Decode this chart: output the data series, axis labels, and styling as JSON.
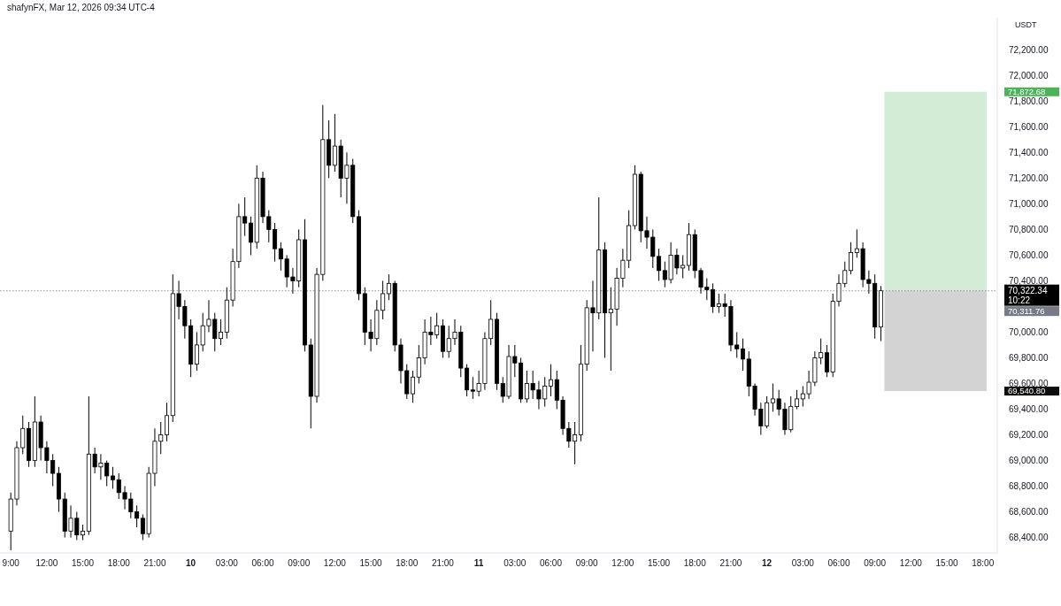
{
  "chart_data": {
    "type": "candlestick",
    "title": "shafynFX, Mar 12, 2026 09:34 UTC-4",
    "ylabel": "USDT",
    "color": "#000000",
    "x": [
      "2026-03-09T09:00",
      "2026-03-09T09:30",
      "2026-03-09T10:00",
      "2026-03-09T10:30",
      "2026-03-09T11:00",
      "2026-03-09T11:30",
      "2026-03-09T12:00",
      "2026-03-09T12:30",
      "2026-03-09T13:00",
      "2026-03-09T13:30",
      "2026-03-09T14:00",
      "2026-03-09T14:30",
      "2026-03-09T15:00",
      "2026-03-09T15:30",
      "2026-03-09T16:00",
      "2026-03-09T16:30",
      "2026-03-09T17:00",
      "2026-03-09T17:30",
      "2026-03-09T18:00",
      "2026-03-09T18:30",
      "2026-03-09T19:00",
      "2026-03-09T19:30",
      "2026-03-09T20:00",
      "2026-03-09T20:30",
      "2026-03-09T21:00",
      "2026-03-09T21:30",
      "2026-03-09T22:00",
      "2026-03-09T22:30",
      "2026-03-09T23:00",
      "2026-03-09T23:30",
      "2026-03-10T00:00",
      "2026-03-10T00:30",
      "2026-03-10T01:00",
      "2026-03-10T01:30",
      "2026-03-10T02:00",
      "2026-03-10T02:30",
      "2026-03-10T03:00",
      "2026-03-10T03:30",
      "2026-03-10T04:00",
      "2026-03-10T04:30",
      "2026-03-10T05:00",
      "2026-03-10T05:30",
      "2026-03-10T06:00",
      "2026-03-10T06:30",
      "2026-03-10T07:00",
      "2026-03-10T07:30",
      "2026-03-10T08:00",
      "2026-03-10T08:30",
      "2026-03-10T09:00",
      "2026-03-10T09:30",
      "2026-03-10T10:00",
      "2026-03-10T10:30",
      "2026-03-10T11:00",
      "2026-03-10T11:30",
      "2026-03-10T12:00",
      "2026-03-10T12:30",
      "2026-03-10T13:00",
      "2026-03-10T13:30",
      "2026-03-10T14:00",
      "2026-03-10T14:30",
      "2026-03-10T15:00",
      "2026-03-10T15:30",
      "2026-03-10T16:00",
      "2026-03-10T16:30",
      "2026-03-10T17:00",
      "2026-03-10T17:30",
      "2026-03-10T18:00",
      "2026-03-10T18:30",
      "2026-03-10T19:00",
      "2026-03-10T19:30",
      "2026-03-10T20:00",
      "2026-03-10T20:30",
      "2026-03-10T21:00",
      "2026-03-10T21:30",
      "2026-03-10T22:00",
      "2026-03-10T22:30",
      "2026-03-10T23:00",
      "2026-03-10T23:30",
      "2026-03-11T00:00",
      "2026-03-11T00:30",
      "2026-03-11T01:00",
      "2026-03-11T01:30",
      "2026-03-11T02:00",
      "2026-03-11T02:30",
      "2026-03-11T03:00",
      "2026-03-11T03:30",
      "2026-03-11T04:00",
      "2026-03-11T04:30",
      "2026-03-11T05:00",
      "2026-03-11T05:30",
      "2026-03-11T06:00",
      "2026-03-11T06:30",
      "2026-03-11T07:00",
      "2026-03-11T07:30",
      "2026-03-11T08:00",
      "2026-03-11T08:30",
      "2026-03-11T09:00",
      "2026-03-11T09:30",
      "2026-03-11T10:00",
      "2026-03-11T10:30",
      "2026-03-11T11:00",
      "2026-03-11T11:30",
      "2026-03-11T12:00",
      "2026-03-11T12:30",
      "2026-03-11T13:00",
      "2026-03-11T13:30",
      "2026-03-11T14:00",
      "2026-03-11T14:30",
      "2026-03-11T15:00",
      "2026-03-11T15:30",
      "2026-03-11T16:00",
      "2026-03-11T16:30",
      "2026-03-11T17:00",
      "2026-03-11T17:30",
      "2026-03-11T18:00",
      "2026-03-11T18:30",
      "2026-03-11T19:00",
      "2026-03-11T19:30",
      "2026-03-11T20:00",
      "2026-03-11T20:30",
      "2026-03-11T21:00",
      "2026-03-11T21:30",
      "2026-03-11T22:00",
      "2026-03-11T22:30",
      "2026-03-11T23:00",
      "2026-03-11T23:30",
      "2026-03-12T00:00",
      "2026-03-12T00:30",
      "2026-03-12T01:00",
      "2026-03-12T01:30",
      "2026-03-12T02:00",
      "2026-03-12T02:30",
      "2026-03-12T03:00",
      "2026-03-12T03:30",
      "2026-03-12T04:00",
      "2026-03-12T04:30",
      "2026-03-12T05:00",
      "2026-03-12T05:30",
      "2026-03-12T06:00",
      "2026-03-12T06:30",
      "2026-03-12T07:00",
      "2026-03-12T07:30",
      "2026-03-12T08:00",
      "2026-03-12T08:30",
      "2026-03-12T09:00",
      "2026-03-12T09:30"
    ],
    "ohlc": [
      [
        68450,
        68750,
        68300,
        68700
      ],
      [
        68700,
        69150,
        68650,
        69100
      ],
      [
        69100,
        69350,
        69050,
        69250
      ],
      [
        69250,
        69300,
        68950,
        69000
      ],
      [
        69000,
        69500,
        68950,
        69300
      ],
      [
        69300,
        69350,
        69000,
        69100
      ],
      [
        69100,
        69150,
        68900,
        69000
      ],
      [
        69000,
        69050,
        68800,
        68900
      ],
      [
        68900,
        68950,
        68600,
        68700
      ],
      [
        68700,
        68750,
        68400,
        68450
      ],
      [
        68450,
        68650,
        68400,
        68550
      ],
      [
        68550,
        68600,
        68380,
        68420
      ],
      [
        68420,
        68500,
        68380,
        68450
      ],
      [
        68450,
        69500,
        68420,
        69050
      ],
      [
        69050,
        69100,
        68900,
        68950
      ],
      [
        68950,
        69050,
        68850,
        68980
      ],
      [
        68980,
        69000,
        68800,
        68880
      ],
      [
        68880,
        68950,
        68780,
        68850
      ],
      [
        68850,
        68900,
        68700,
        68750
      ],
      [
        68750,
        68800,
        68620,
        68700
      ],
      [
        68700,
        68750,
        68550,
        68600
      ],
      [
        68600,
        68650,
        68480,
        68550
      ],
      [
        68550,
        68580,
        68380,
        68430
      ],
      [
        68430,
        68950,
        68400,
        68900
      ],
      [
        68900,
        69250,
        68800,
        69150
      ],
      [
        69150,
        69300,
        69050,
        69200
      ],
      [
        69200,
        69450,
        69150,
        69350
      ],
      [
        69350,
        70450,
        69300,
        70300
      ],
      [
        70300,
        70400,
        70100,
        70200
      ],
      [
        70200,
        70250,
        69950,
        70050
      ],
      [
        70050,
        70100,
        69650,
        69750
      ],
      [
        69750,
        70000,
        69700,
        69900
      ],
      [
        69900,
        70150,
        69850,
        70050
      ],
      [
        70050,
        70250,
        70000,
        70100
      ],
      [
        70100,
        70150,
        69850,
        69950
      ],
      [
        69950,
        70100,
        69900,
        70000
      ],
      [
        70000,
        70350,
        69950,
        70250
      ],
      [
        70250,
        70650,
        70200,
        70550
      ],
      [
        70550,
        71000,
        70500,
        70900
      ],
      [
        70900,
        71050,
        70750,
        70850
      ],
      [
        70850,
        70900,
        70600,
        70700
      ],
      [
        70700,
        71300,
        70650,
        71200
      ],
      [
        71200,
        71250,
        70850,
        70900
      ],
      [
        70900,
        70950,
        70700,
        70800
      ],
      [
        70800,
        70850,
        70550,
        70650
      ],
      [
        70650,
        70700,
        70480,
        70570
      ],
      [
        70570,
        70600,
        70350,
        70430
      ],
      [
        70430,
        70500,
        70300,
        70400
      ],
      [
        70400,
        70800,
        70350,
        70720
      ],
      [
        70720,
        70880,
        69850,
        69900
      ],
      [
        69900,
        69950,
        69250,
        69500
      ],
      [
        69500,
        70500,
        69450,
        70450
      ],
      [
        70450,
        71770,
        70400,
        71500
      ],
      [
        71500,
        71650,
        71200,
        71300
      ],
      [
        71300,
        71700,
        71250,
        71450
      ],
      [
        71450,
        71500,
        71050,
        71200
      ],
      [
        71200,
        71400,
        71000,
        71300
      ],
      [
        71300,
        71350,
        70850,
        70900
      ],
      [
        70900,
        70950,
        70250,
        70300
      ],
      [
        70300,
        70350,
        69900,
        70000
      ],
      [
        70000,
        70100,
        69850,
        69950
      ],
      [
        69950,
        70250,
        69900,
        70170
      ],
      [
        70170,
        70400,
        70100,
        70300
      ],
      [
        70300,
        70450,
        70250,
        70380
      ],
      [
        70380,
        70400,
        69850,
        69900
      ],
      [
        69900,
        69950,
        69600,
        69700
      ],
      [
        69700,
        69750,
        69480,
        69520
      ],
      [
        69520,
        69700,
        69450,
        69650
      ],
      [
        69650,
        69900,
        69600,
        69800
      ],
      [
        69800,
        70100,
        69750,
        70000
      ],
      [
        70000,
        70120,
        69900,
        69980
      ],
      [
        69980,
        70150,
        69950,
        70050
      ],
      [
        70050,
        70100,
        69800,
        69850
      ],
      [
        69850,
        70050,
        69800,
        69950
      ],
      [
        69950,
        70100,
        69900,
        70000
      ],
      [
        70000,
        70050,
        69650,
        69720
      ],
      [
        69720,
        69750,
        69500,
        69550
      ],
      [
        69550,
        69650,
        69480,
        69540
      ],
      [
        69540,
        69700,
        69500,
        69600
      ],
      [
        69600,
        70000,
        69550,
        69950
      ],
      [
        69950,
        70250,
        69900,
        70100
      ],
      [
        70100,
        70150,
        69550,
        69600
      ],
      [
        69600,
        69650,
        69450,
        69500
      ],
      [
        69500,
        69900,
        69480,
        69810
      ],
      [
        69810,
        69900,
        69650,
        69760
      ],
      [
        69760,
        69800,
        69450,
        69480
      ],
      [
        69480,
        69700,
        69450,
        69600
      ],
      [
        69600,
        69700,
        69480,
        69550
      ],
      [
        69550,
        69620,
        69400,
        69480
      ],
      [
        69480,
        69650,
        69420,
        69580
      ],
      [
        69580,
        69750,
        69500,
        69630
      ],
      [
        69630,
        69700,
        69400,
        69470
      ],
      [
        69470,
        69500,
        69200,
        69250
      ],
      [
        69250,
        69300,
        69100,
        69150
      ],
      [
        69150,
        69300,
        68970,
        69200
      ],
      [
        69200,
        69900,
        69150,
        69750
      ],
      [
        69750,
        70250,
        69700,
        70190
      ],
      [
        70190,
        70400,
        69850,
        70150
      ],
      [
        70150,
        71050,
        70100,
        70640
      ],
      [
        70640,
        70700,
        69800,
        70150
      ],
      [
        70150,
        70350,
        69700,
        70180
      ],
      [
        70180,
        70500,
        70050,
        70420
      ],
      [
        70420,
        70650,
        70350,
        70560
      ],
      [
        70560,
        70950,
        70500,
        70830
      ],
      [
        70830,
        71300,
        70800,
        71230
      ],
      [
        71230,
        71250,
        70700,
        70790
      ],
      [
        70790,
        70900,
        70650,
        70740
      ],
      [
        70740,
        70800,
        70500,
        70590
      ],
      [
        70590,
        70650,
        70400,
        70480
      ],
      [
        70480,
        70550,
        70350,
        70410
      ],
      [
        70410,
        70700,
        70380,
        70600
      ],
      [
        70600,
        70650,
        70450,
        70500
      ],
      [
        70500,
        70600,
        70420,
        70520
      ],
      [
        70520,
        70850,
        70480,
        70760
      ],
      [
        70760,
        70800,
        70420,
        70480
      ],
      [
        70480,
        70500,
        70300,
        70350
      ],
      [
        70350,
        70420,
        70250,
        70330
      ],
      [
        70330,
        70380,
        70150,
        70200
      ],
      [
        70200,
        70300,
        70150,
        70220
      ],
      [
        70220,
        70300,
        70120,
        70200
      ],
      [
        70200,
        70250,
        69850,
        69900
      ],
      [
        69900,
        70000,
        69800,
        69870
      ],
      [
        69870,
        69950,
        69700,
        69790
      ],
      [
        69790,
        69850,
        69500,
        69580
      ],
      [
        69580,
        69600,
        69350,
        69400
      ],
      [
        69400,
        69450,
        69200,
        69270
      ],
      [
        69270,
        69500,
        69250,
        69450
      ],
      [
        69450,
        69600,
        69380,
        69480
      ],
      [
        69480,
        69550,
        69350,
        69400
      ],
      [
        69400,
        69450,
        69200,
        69240
      ],
      [
        69240,
        69500,
        69220,
        69420
      ],
      [
        69420,
        69550,
        69400,
        69480
      ],
      [
        69480,
        69580,
        69420,
        69520
      ],
      [
        69520,
        69700,
        69480,
        69610
      ],
      [
        69610,
        69850,
        69580,
        69800
      ],
      [
        69800,
        69950,
        69750,
        69840
      ],
      [
        69840,
        69900,
        69650,
        69690
      ],
      [
        69690,
        70300,
        69650,
        70240
      ],
      [
        70240,
        70450,
        70200,
        70380
      ],
      [
        70380,
        70550,
        70350,
        70480
      ],
      [
        70480,
        70700,
        70450,
        70620
      ],
      [
        70620,
        70800,
        70580,
        70650
      ],
      [
        70650,
        70700,
        70350,
        70410
      ],
      [
        70410,
        70480,
        70300,
        70380
      ],
      [
        70380,
        70450,
        69950,
        70040
      ],
      [
        70040,
        70360,
        69930,
        70322.34
      ]
    ],
    "xlim": [
      "2026-03-09T08:06",
      "2026-03-12T19:12"
    ],
    "xticks": [
      {
        "value": "2026-03-09T09:00",
        "label": "9:00"
      },
      {
        "value": "2026-03-09T12:00",
        "label": "12:00"
      },
      {
        "value": "2026-03-09T15:00",
        "label": "15:00"
      },
      {
        "value": "2026-03-09T18:00",
        "label": "18:00"
      },
      {
        "value": "2026-03-09T21:00",
        "label": "21:00"
      },
      {
        "value": "2026-03-10T00:00",
        "label": "10"
      },
      {
        "value": "2026-03-10T03:00",
        "label": "03:00"
      },
      {
        "value": "2026-03-10T06:00",
        "label": "06:00"
      },
      {
        "value": "2026-03-10T09:00",
        "label": "09:00"
      },
      {
        "value": "2026-03-10T12:00",
        "label": "12:00"
      },
      {
        "value": "2026-03-10T15:00",
        "label": "15:00"
      },
      {
        "value": "2026-03-10T18:00",
        "label": "18:00"
      },
      {
        "value": "2026-03-10T21:00",
        "label": "21:00"
      },
      {
        "value": "2026-03-11T00:00",
        "label": "11"
      },
      {
        "value": "2026-03-11T03:00",
        "label": "03:00"
      },
      {
        "value": "2026-03-11T06:00",
        "label": "06:00"
      },
      {
        "value": "2026-03-11T09:00",
        "label": "09:00"
      },
      {
        "value": "2026-03-11T12:00",
        "label": "12:00"
      },
      {
        "value": "2026-03-11T15:00",
        "label": "15:00"
      },
      {
        "value": "2026-03-11T18:00",
        "label": "18:00"
      },
      {
        "value": "2026-03-11T21:00",
        "label": "21:00"
      },
      {
        "value": "2026-03-12T00:00",
        "label": "12"
      },
      {
        "value": "2026-03-12T03:00",
        "label": "03:00"
      },
      {
        "value": "2026-03-12T06:00",
        "label": "06:00"
      },
      {
        "value": "2026-03-12T09:00",
        "label": "09:00"
      },
      {
        "value": "2026-03-12T12:00",
        "label": "12:00"
      },
      {
        "value": "2026-03-12T15:00",
        "label": "15:00"
      },
      {
        "value": "2026-03-12T18:00",
        "label": "18:00"
      }
    ],
    "ylim": [
      68280,
      72450
    ],
    "yticks": [
      {
        "value": 68400,
        "label": "68,400.00"
      },
      {
        "value": 68600,
        "label": "68,600.00"
      },
      {
        "value": 68800,
        "label": "68,800.00"
      },
      {
        "value": 69000,
        "label": "69,000.00"
      },
      {
        "value": 69200,
        "label": "69,200.00"
      },
      {
        "value": 69400,
        "label": "69,400.00"
      },
      {
        "value": 69600,
        "label": "69,600.00"
      },
      {
        "value": 69800,
        "label": "69,800.00"
      },
      {
        "value": 70000,
        "label": "70,000.00"
      },
      {
        "value": 70400,
        "label": "70,400.00"
      },
      {
        "value": 70600,
        "label": "70,600.00"
      },
      {
        "value": 70800,
        "label": "70,800.00"
      },
      {
        "value": 71000,
        "label": "71,000.00"
      },
      {
        "value": 71200,
        "label": "71,200.00"
      },
      {
        "value": 71400,
        "label": "71,400.00"
      },
      {
        "value": 71600,
        "label": "71,600.00"
      },
      {
        "value": 71800,
        "label": "71,800.00"
      },
      {
        "value": 72000,
        "label": "72,000.00"
      },
      {
        "value": 72200,
        "label": "72,200.00"
      }
    ],
    "bands": [
      {
        "axis": "y",
        "from": 70322.34,
        "to": 71872.68,
        "label": "71,872.68",
        "color": "#d2ecd5"
      },
      {
        "axis": "y",
        "from": 69540.8,
        "to": 70322.34,
        "label": "69,540.80",
        "color": "#d3d3d3"
      }
    ],
    "ref_lines": [
      {
        "axis": "y",
        "value": 70322.34,
        "label": "70,322.34",
        "line_style": "dotted",
        "color": "#777777"
      }
    ],
    "annotations": [
      "10:22",
      "70,311.76"
    ]
  }
}
